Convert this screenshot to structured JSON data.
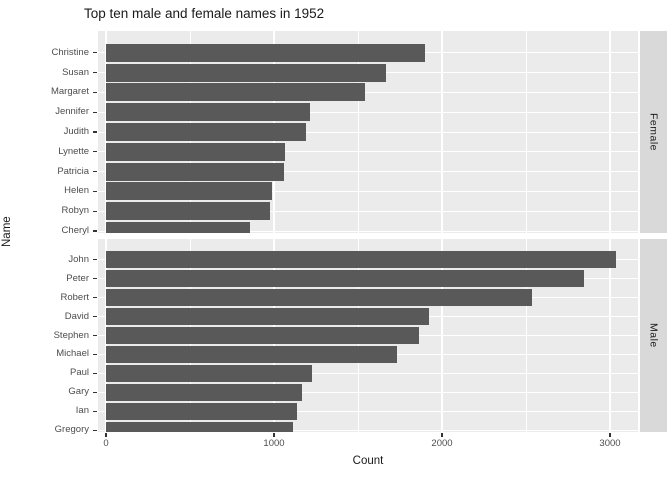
{
  "chart_data": {
    "type": "bar",
    "orientation": "horizontal",
    "title": "Top ten male and female names in 1952",
    "xlabel": "Count",
    "ylabel": "Name",
    "x_ticks": [
      0,
      1000,
      2000,
      3000
    ],
    "x_minor_ticks": [
      500,
      1500,
      2500
    ],
    "xlim": [
      0,
      3165
    ],
    "grid": "white major+minor vertical lines and white horizontal category lines on gray panel",
    "legend": "none",
    "facet_position": "right-strip",
    "facets": [
      {
        "label": "Female",
        "categories": [
          "Christine",
          "Susan",
          "Margaret",
          "Jennifer",
          "Judith",
          "Lynette",
          "Patricia",
          "Helen",
          "Robyn",
          "Cheryl"
        ],
        "values": [
          1900,
          1665,
          1540,
          1215,
          1190,
          1065,
          1060,
          990,
          975,
          855
        ]
      },
      {
        "label": "Male",
        "categories": [
          "John",
          "Peter",
          "Robert",
          "David",
          "Stephen",
          "Michael",
          "Paul",
          "Gary",
          "Ian",
          "Gregory"
        ],
        "values": [
          3035,
          2845,
          2535,
          1925,
          1865,
          1730,
          1225,
          1165,
          1135,
          1110
        ]
      }
    ],
    "colors": {
      "bar": "#595959",
      "panel_bg": "#EBEBEB",
      "strip_bg": "#D9D9D9",
      "gridline": "#FFFFFF",
      "tick_label": "#4D4D4D",
      "tick_mark": "#333333",
      "text": "#000000"
    }
  }
}
